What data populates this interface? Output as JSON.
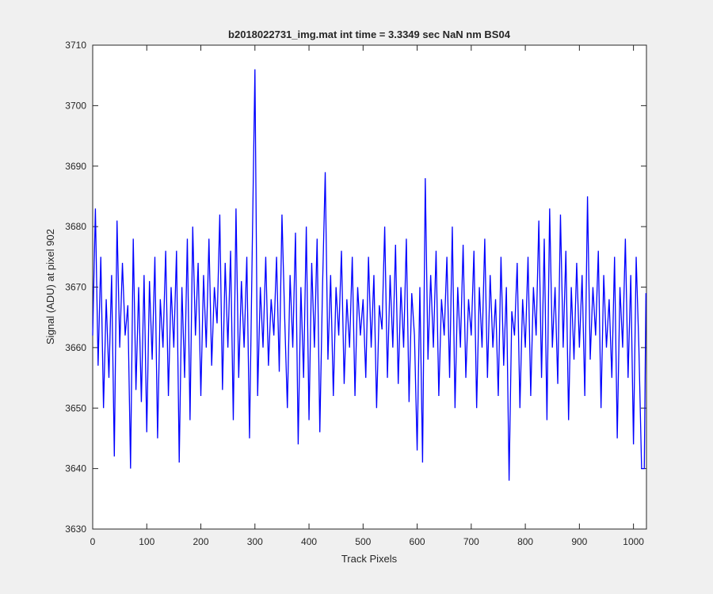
{
  "chart_data": {
    "type": "line",
    "title": "b2018022731_img.mat int time = 3.3349 sec  NaN nm BS04",
    "xlabel": "Track Pixels",
    "ylabel": "Signal (ADU) at pixel 902",
    "xlim": [
      0,
      1024
    ],
    "ylim": [
      3630,
      3710
    ],
    "xticks": [
      0,
      100,
      200,
      300,
      400,
      500,
      600,
      700,
      800,
      900,
      1000
    ],
    "yticks": [
      3630,
      3640,
      3650,
      3660,
      3670,
      3680,
      3690,
      3700,
      3710
    ],
    "grid": false,
    "x": [
      0,
      5,
      10,
      15,
      20,
      25,
      30,
      35,
      40,
      45,
      50,
      55,
      60,
      65,
      70,
      75,
      80,
      85,
      90,
      95,
      100,
      105,
      110,
      115,
      120,
      125,
      130,
      135,
      140,
      145,
      150,
      155,
      160,
      165,
      170,
      175,
      180,
      185,
      190,
      195,
      200,
      205,
      210,
      215,
      220,
      225,
      230,
      235,
      240,
      245,
      250,
      255,
      260,
      265,
      270,
      275,
      280,
      285,
      290,
      295,
      300,
      305,
      310,
      315,
      320,
      325,
      330,
      335,
      340,
      345,
      350,
      355,
      360,
      365,
      370,
      375,
      380,
      385,
      390,
      395,
      400,
      405,
      410,
      415,
      420,
      425,
      430,
      435,
      440,
      445,
      450,
      455,
      460,
      465,
      470,
      475,
      480,
      485,
      490,
      495,
      500,
      505,
      510,
      515,
      520,
      525,
      530,
      535,
      540,
      545,
      550,
      555,
      560,
      565,
      570,
      575,
      580,
      585,
      590,
      595,
      600,
      605,
      610,
      615,
      620,
      625,
      630,
      635,
      640,
      645,
      650,
      655,
      660,
      665,
      670,
      675,
      680,
      685,
      690,
      695,
      700,
      705,
      710,
      715,
      720,
      725,
      730,
      735,
      740,
      745,
      750,
      755,
      760,
      765,
      770,
      775,
      780,
      785,
      790,
      795,
      800,
      805,
      810,
      815,
      820,
      825,
      830,
      835,
      840,
      845,
      850,
      855,
      860,
      865,
      870,
      875,
      880,
      885,
      890,
      895,
      900,
      905,
      910,
      915,
      920,
      925,
      930,
      935,
      940,
      945,
      950,
      955,
      960,
      965,
      970,
      975,
      980,
      985,
      990,
      995,
      1000,
      1005,
      1010,
      1015,
      1020,
      1023
    ],
    "series": [
      {
        "name": "Signal",
        "color": "#0000ff",
        "values": [
          3662,
          3683,
          3657,
          3675,
          3650,
          3668,
          3655,
          3672,
          3642,
          3681,
          3660,
          3674,
          3662,
          3667,
          3640,
          3678,
          3653,
          3670,
          3651,
          3672,
          3646,
          3671,
          3658,
          3675,
          3645,
          3668,
          3660,
          3676,
          3652,
          3670,
          3660,
          3676,
          3641,
          3670,
          3655,
          3678,
          3648,
          3680,
          3662,
          3674,
          3652,
          3672,
          3660,
          3678,
          3657,
          3670,
          3664,
          3682,
          3653,
          3674,
          3660,
          3676,
          3648,
          3683,
          3655,
          3671,
          3660,
          3675,
          3645,
          3676,
          3706,
          3652,
          3670,
          3660,
          3675,
          3657,
          3668,
          3662,
          3675,
          3656,
          3682,
          3665,
          3650,
          3672,
          3660,
          3679,
          3644,
          3670,
          3655,
          3680,
          3648,
          3674,
          3660,
          3678,
          3646,
          3670,
          3689,
          3658,
          3672,
          3652,
          3670,
          3662,
          3676,
          3654,
          3668,
          3660,
          3675,
          3652,
          3670,
          3662,
          3668,
          3655,
          3675,
          3660,
          3672,
          3650,
          3667,
          3663,
          3680,
          3655,
          3672,
          3660,
          3677,
          3654,
          3670,
          3660,
          3678,
          3651,
          3669,
          3662,
          3643,
          3670,
          3641,
          3688,
          3658,
          3672,
          3660,
          3676,
          3652,
          3668,
          3662,
          3675,
          3655,
          3680,
          3650,
          3670,
          3660,
          3677,
          3655,
          3668,
          3662,
          3676,
          3650,
          3670,
          3660,
          3678,
          3655,
          3672,
          3660,
          3668,
          3652,
          3675,
          3657,
          3670,
          3638,
          3666,
          3662,
          3674,
          3650,
          3668,
          3660,
          3675,
          3652,
          3670,
          3662,
          3681,
          3655,
          3678,
          3648,
          3683,
          3660,
          3670,
          3654,
          3682,
          3660,
          3676,
          3648,
          3670,
          3658,
          3674,
          3660,
          3672,
          3652,
          3685,
          3658,
          3670,
          3662,
          3676,
          3650,
          3672,
          3660,
          3668,
          3655,
          3675,
          3645,
          3670,
          3660,
          3678,
          3655,
          3672,
          3644,
          3675,
          3660,
          3640,
          3640,
          3669
        ]
      }
    ]
  }
}
